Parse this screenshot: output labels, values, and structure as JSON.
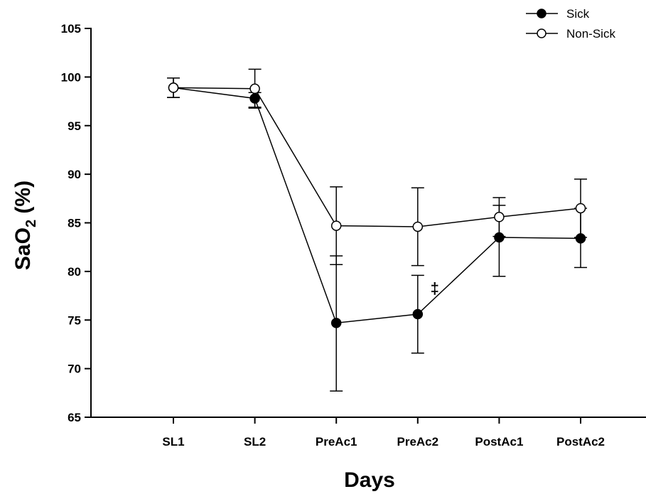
{
  "chart_data": {
    "type": "line",
    "title": "",
    "xlabel": "Days",
    "ylabel_main": "SaO",
    "ylabel_sub": "2",
    "ylabel_unit": " (%)",
    "categories": [
      "SL1",
      "SL2",
      "PreAc1",
      "PreAc2",
      "PostAc1",
      "PostAc2"
    ],
    "ylim": [
      65,
      105
    ],
    "yticks": [
      "65",
      "70",
      "75",
      "80",
      "85",
      "90",
      "95",
      "100",
      "105"
    ],
    "grid": false,
    "legend_position": "top-right",
    "series": [
      {
        "name": "Sick",
        "marker": "filled-circle",
        "values": [
          98.9,
          97.8,
          74.7,
          75.6,
          83.5,
          83.4
        ],
        "err_upper": [
          99.9,
          98.4,
          81.6,
          79.6,
          86.8,
          86.5
        ],
        "err_lower": [
          97.9,
          96.9,
          67.7,
          71.6,
          79.5,
          80.4
        ]
      },
      {
        "name": "Non-Sick",
        "marker": "open-circle",
        "values": [
          98.9,
          98.8,
          84.7,
          84.6,
          85.6,
          86.5
        ],
        "err_upper": [
          99.9,
          100.8,
          88.7,
          88.6,
          87.6,
          89.5
        ],
        "err_lower": [
          97.9,
          96.8,
          80.7,
          80.6,
          83.6,
          83.5
        ]
      }
    ],
    "annotations": [
      {
        "text": "‡",
        "category": "PreAc2",
        "y": 78.3
      }
    ],
    "colors": {
      "line": "#000000",
      "filled_marker": "#000000",
      "open_marker_fill": "#ffffff"
    }
  }
}
